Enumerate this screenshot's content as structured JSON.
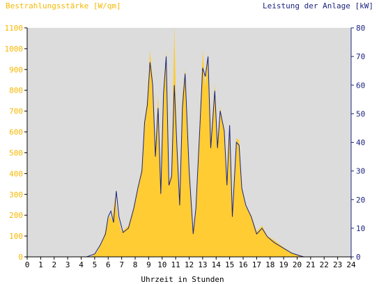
{
  "chart_data": {
    "type": "area",
    "title_left": "Bestrahlungsstärke [W/qm]",
    "title_right": "Leistung der Anlage [kW]",
    "xlabel": "Uhrzeit in Stunden",
    "x_ticks": [
      "0",
      "1",
      "2",
      "3",
      "4",
      "5",
      "6",
      "7",
      "8",
      "9",
      "10",
      "11",
      "12",
      "13",
      "14",
      "15",
      "16",
      "17",
      "18",
      "19",
      "20",
      "21",
      "22",
      "23",
      "24"
    ],
    "y_left_ticks": [
      "0",
      "100",
      "200",
      "300",
      "400",
      "500",
      "600",
      "700",
      "800",
      "900",
      "1000",
      "1100"
    ],
    "y_right_ticks": [
      "0",
      "10",
      "20",
      "30",
      "40",
      "50",
      "60",
      "70",
      "80"
    ],
    "xlim": [
      0,
      24
    ],
    "ylim_left": [
      0,
      1100
    ],
    "ylim_right": [
      0,
      80
    ],
    "grid": false,
    "colors": {
      "plot_bg": "#dcdcdc",
      "irradiance": "#ffcc33",
      "power": "#1a237e",
      "left_axis_text": "#f5b800",
      "right_axis_text": "#1a237e"
    },
    "series": [
      {
        "axis": "left",
        "style": "area",
        "points": [
          [
            0,
            0
          ],
          [
            4.3,
            0
          ],
          [
            4.8,
            3
          ],
          [
            5.2,
            25
          ],
          [
            5.6,
            80
          ],
          [
            5.9,
            150
          ],
          [
            6.1,
            200
          ],
          [
            6.3,
            175
          ],
          [
            6.5,
            290
          ],
          [
            6.7,
            200
          ],
          [
            7.0,
            120
          ],
          [
            7.5,
            150
          ],
          [
            7.9,
            240
          ],
          [
            8.2,
            330
          ],
          [
            8.5,
            430
          ],
          [
            8.7,
            650
          ],
          [
            8.9,
            760
          ],
          [
            9.1,
            990
          ],
          [
            9.3,
            850
          ],
          [
            9.5,
            520
          ],
          [
            9.7,
            780
          ],
          [
            9.9,
            350
          ],
          [
            10.1,
            780
          ],
          [
            10.3,
            995
          ],
          [
            10.5,
            360
          ],
          [
            10.7,
            400
          ],
          [
            10.9,
            1110
          ],
          [
            11.1,
            520
          ],
          [
            11.3,
            280
          ],
          [
            11.5,
            780
          ],
          [
            11.7,
            900
          ],
          [
            12.0,
            440
          ],
          [
            12.3,
            130
          ],
          [
            12.5,
            220
          ],
          [
            12.8,
            650
          ],
          [
            13.0,
            990
          ],
          [
            13.2,
            820
          ],
          [
            13.4,
            980
          ],
          [
            13.6,
            560
          ],
          [
            13.9,
            830
          ],
          [
            14.1,
            540
          ],
          [
            14.3,
            720
          ],
          [
            14.6,
            600
          ],
          [
            14.8,
            350
          ],
          [
            15.0,
            610
          ],
          [
            15.2,
            200
          ],
          [
            15.5,
            570
          ],
          [
            15.7,
            560
          ],
          [
            15.9,
            330
          ],
          [
            16.2,
            240
          ],
          [
            16.6,
            200
          ],
          [
            17.0,
            120
          ],
          [
            17.4,
            150
          ],
          [
            17.8,
            100
          ],
          [
            18.3,
            80
          ],
          [
            19.0,
            45
          ],
          [
            19.6,
            20
          ],
          [
            20.2,
            6
          ],
          [
            20.5,
            0
          ],
          [
            24,
            0
          ]
        ]
      },
      {
        "axis": "right",
        "style": "line",
        "points": [
          [
            0,
            0
          ],
          [
            4.4,
            0
          ],
          [
            5.0,
            1
          ],
          [
            5.4,
            4
          ],
          [
            5.8,
            8
          ],
          [
            6.0,
            14
          ],
          [
            6.2,
            16
          ],
          [
            6.4,
            12
          ],
          [
            6.6,
            23
          ],
          [
            6.8,
            14
          ],
          [
            7.1,
            8.5
          ],
          [
            7.5,
            10
          ],
          [
            7.9,
            17
          ],
          [
            8.2,
            24
          ],
          [
            8.5,
            30
          ],
          [
            8.7,
            47
          ],
          [
            8.9,
            53
          ],
          [
            9.1,
            68
          ],
          [
            9.3,
            60
          ],
          [
            9.5,
            35
          ],
          [
            9.7,
            52
          ],
          [
            9.9,
            22
          ],
          [
            10.1,
            57
          ],
          [
            10.3,
            70
          ],
          [
            10.5,
            25
          ],
          [
            10.7,
            28
          ],
          [
            10.9,
            60
          ],
          [
            11.1,
            38
          ],
          [
            11.3,
            18
          ],
          [
            11.5,
            52
          ],
          [
            11.7,
            64
          ],
          [
            12.0,
            30
          ],
          [
            12.3,
            8
          ],
          [
            12.5,
            17
          ],
          [
            12.8,
            46
          ],
          [
            13.0,
            66
          ],
          [
            13.2,
            63
          ],
          [
            13.4,
            70
          ],
          [
            13.6,
            38
          ],
          [
            13.9,
            58
          ],
          [
            14.1,
            38
          ],
          [
            14.3,
            51
          ],
          [
            14.6,
            44
          ],
          [
            14.8,
            25
          ],
          [
            15.0,
            46
          ],
          [
            15.2,
            14
          ],
          [
            15.5,
            40
          ],
          [
            15.7,
            39
          ],
          [
            15.9,
            24
          ],
          [
            16.2,
            18
          ],
          [
            16.6,
            14
          ],
          [
            17.0,
            8
          ],
          [
            17.4,
            10
          ],
          [
            17.8,
            7
          ],
          [
            18.3,
            5
          ],
          [
            19.0,
            3
          ],
          [
            19.6,
            1.3
          ],
          [
            20.2,
            0.4
          ],
          [
            20.5,
            0
          ],
          [
            24,
            0
          ]
        ]
      }
    ]
  }
}
